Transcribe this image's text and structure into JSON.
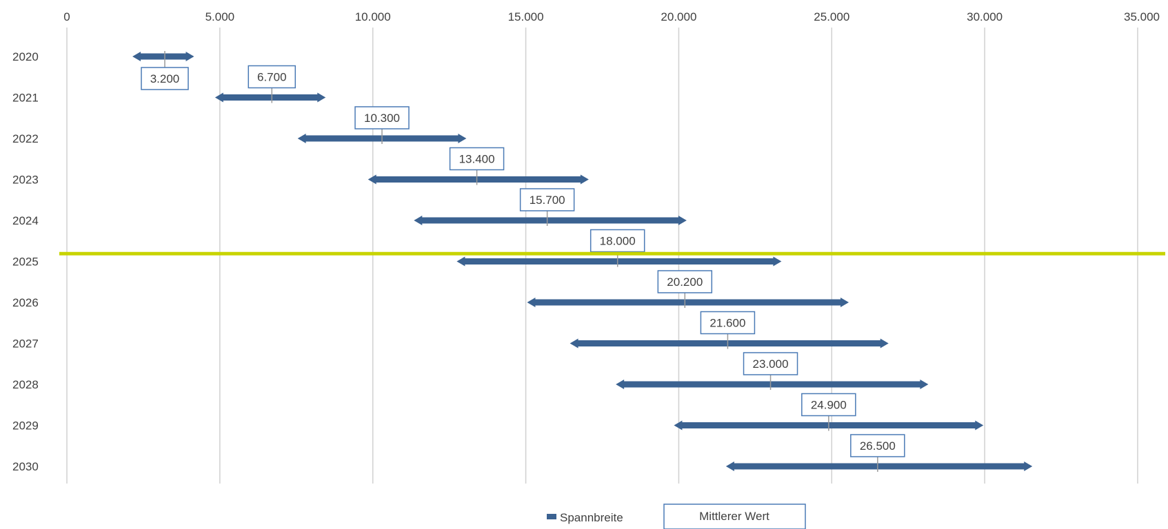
{
  "chart_data": {
    "type": "range-bar",
    "categories": [
      "2020",
      "2021",
      "2022",
      "2023",
      "2024",
      "2025",
      "2026",
      "2027",
      "2028",
      "2029",
      "2030"
    ],
    "ranges": [
      {
        "year": "2020",
        "low": 2300,
        "high": 4000,
        "mid": 3200,
        "mid_label": "3.200"
      },
      {
        "year": "2021",
        "low": 5000,
        "high": 8300,
        "mid": 6700,
        "mid_label": "6.700"
      },
      {
        "year": "2022",
        "low": 7700,
        "high": 12900,
        "mid": 10300,
        "mid_label": "10.300"
      },
      {
        "year": "2023",
        "low": 10000,
        "high": 16900,
        "mid": 13400,
        "mid_label": "13.400"
      },
      {
        "year": "2024",
        "low": 11500,
        "high": 20100,
        "mid": 15700,
        "mid_label": "15.700"
      },
      {
        "year": "2025",
        "low": 12900,
        "high": 23200,
        "mid": 18000,
        "mid_label": "18.000"
      },
      {
        "year": "2026",
        "low": 15200,
        "high": 25400,
        "mid": 20200,
        "mid_label": "20.200"
      },
      {
        "year": "2027",
        "low": 16600,
        "high": 26700,
        "mid": 21600,
        "mid_label": "21.600"
      },
      {
        "year": "2028",
        "low": 18100,
        "high": 28000,
        "mid": 23000,
        "mid_label": "23.000"
      },
      {
        "year": "2029",
        "low": 20000,
        "high": 29800,
        "mid": 24900,
        "mid_label": "24.900"
      },
      {
        "year": "2030",
        "low": 21700,
        "high": 31400,
        "mid": 26500,
        "mid_label": "26.500"
      }
    ],
    "x_ticks": [
      {
        "value": 0,
        "label": "0"
      },
      {
        "value": 5000,
        "label": "5.000"
      },
      {
        "value": 10000,
        "label": "10.000"
      },
      {
        "value": 15000,
        "label": "15.000"
      },
      {
        "value": 20000,
        "label": "20.000"
      },
      {
        "value": 25000,
        "label": "25.000"
      },
      {
        "value": 30000,
        "label": "30.000"
      },
      {
        "value": 35000,
        "label": "35.000"
      }
    ],
    "xlim": [
      0,
      35000
    ],
    "x_axis_position": "top",
    "grid": "vertical",
    "legend": {
      "position": "bottom",
      "entries": [
        {
          "name": "Spannbreite",
          "symbol": "bar"
        },
        {
          "name": "Mittlerer Wert",
          "symbol": "box"
        }
      ]
    },
    "highlight_line": {
      "between": [
        "2024",
        "2025"
      ]
    },
    "colors": {
      "bar": "#3b6291",
      "label_border": "#4a7ab5",
      "grid": "#d0d0d0",
      "mid_tick": "#999999",
      "highlight": "#c8d400",
      "text": "#404040"
    }
  }
}
